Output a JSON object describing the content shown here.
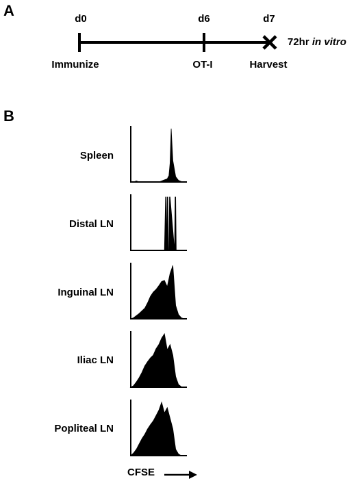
{
  "panels": {
    "a": "A",
    "b": "B"
  },
  "timeline": {
    "days": [
      "d0",
      "d6",
      "d7"
    ],
    "events": [
      "Immunize",
      "OT-I",
      "Harvest"
    ],
    "note_prefix": "72hr ",
    "note_italic": "in vitro"
  },
  "chart_data": [
    {
      "type": "area",
      "title": "Spleen",
      "xlabel": "CFSE",
      "ylabel": "",
      "x": [
        0,
        0.05,
        0.1,
        0.15,
        0.2,
        0.25,
        0.3,
        0.35,
        0.4,
        0.45,
        0.5,
        0.55,
        0.6,
        0.65,
        0.68,
        0.7,
        0.72,
        0.75,
        0.8,
        0.85,
        0.9,
        0.95,
        1
      ],
      "y": [
        0,
        0,
        0.02,
        0,
        0,
        0,
        0,
        0,
        0,
        0,
        0,
        0.02,
        0.04,
        0.06,
        0.12,
        0.35,
        1,
        0.4,
        0.1,
        0.03,
        0.01,
        0,
        0
      ]
    },
    {
      "type": "area",
      "title": "Distal LN",
      "xlabel": "CFSE",
      "ylabel": "",
      "x": [
        0,
        0.6,
        0.62,
        0.63,
        0.64,
        0.65,
        0.66,
        0.67,
        0.68,
        0.69,
        0.7,
        0.78,
        0.79,
        0.8,
        0.81,
        1
      ],
      "y": [
        0,
        0,
        1,
        1,
        0,
        1,
        1,
        0,
        0,
        1,
        1,
        0,
        1,
        1,
        0,
        0
      ]
    },
    {
      "type": "area",
      "title": "Inguinal LN",
      "xlabel": "CFSE",
      "ylabel": "",
      "x": [
        0,
        0.05,
        0.1,
        0.15,
        0.2,
        0.25,
        0.3,
        0.35,
        0.4,
        0.45,
        0.5,
        0.55,
        0.6,
        0.65,
        0.7,
        0.75,
        0.8,
        0.85,
        0.9,
        0.95,
        1
      ],
      "y": [
        0,
        0.02,
        0.06,
        0.1,
        0.15,
        0.2,
        0.3,
        0.42,
        0.5,
        0.55,
        0.62,
        0.7,
        0.72,
        0.6,
        0.85,
        1,
        0.25,
        0.08,
        0.02,
        0,
        0
      ]
    },
    {
      "type": "area",
      "title": "Iliac LN",
      "xlabel": "CFSE",
      "ylabel": "",
      "x": [
        0,
        0.05,
        0.1,
        0.15,
        0.2,
        0.25,
        0.3,
        0.35,
        0.4,
        0.45,
        0.5,
        0.55,
        0.6,
        0.65,
        0.7,
        0.75,
        0.8,
        0.85,
        0.9,
        0.95,
        1
      ],
      "y": [
        0,
        0.03,
        0.1,
        0.18,
        0.28,
        0.4,
        0.48,
        0.55,
        0.6,
        0.72,
        0.8,
        0.92,
        1,
        0.7,
        0.8,
        0.6,
        0.2,
        0.05,
        0.01,
        0,
        0
      ]
    },
    {
      "type": "area",
      "title": "Popliteal LN",
      "xlabel": "CFSE",
      "ylabel": "",
      "x": [
        0,
        0.05,
        0.1,
        0.15,
        0.2,
        0.25,
        0.3,
        0.35,
        0.4,
        0.45,
        0.5,
        0.55,
        0.6,
        0.65,
        0.7,
        0.75,
        0.8,
        0.85,
        0.9,
        0.95,
        1
      ],
      "y": [
        0,
        0.05,
        0.12,
        0.22,
        0.32,
        0.4,
        0.5,
        0.58,
        0.65,
        0.75,
        0.85,
        1,
        0.8,
        0.9,
        0.7,
        0.5,
        0.12,
        0.03,
        0,
        0,
        0
      ]
    }
  ]
}
